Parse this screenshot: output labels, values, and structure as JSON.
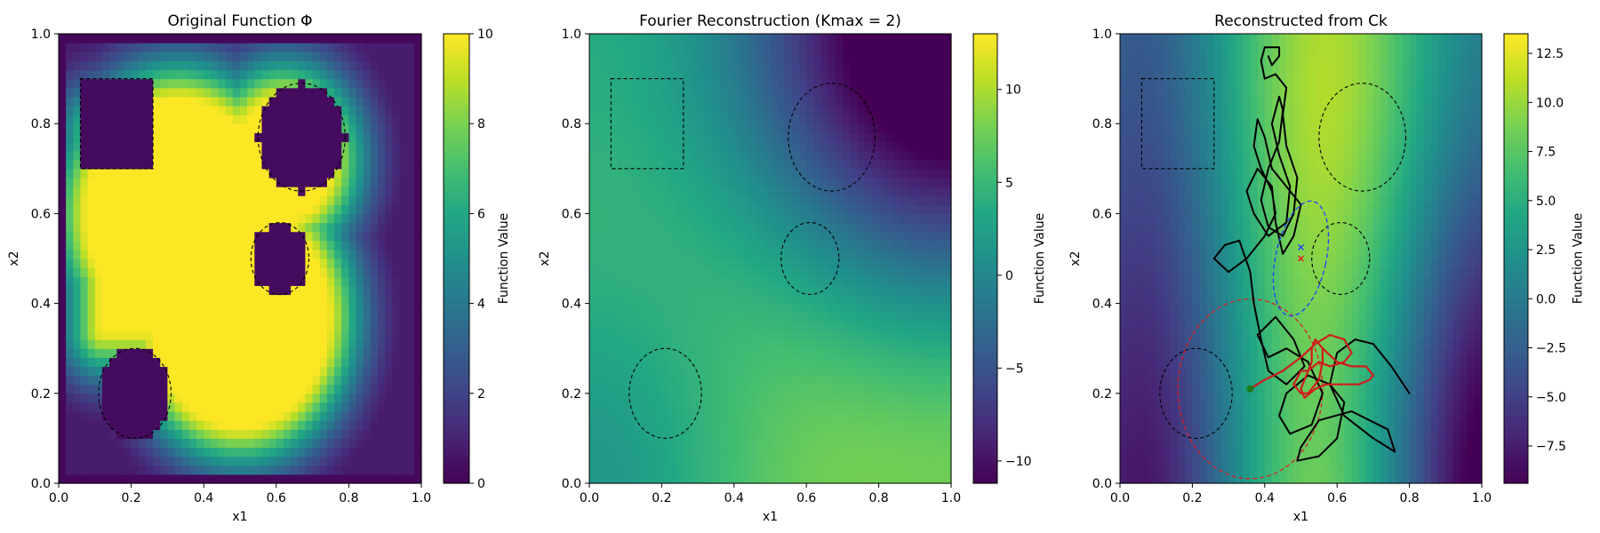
{
  "chart_data": [
    {
      "type": "heatmap",
      "title": "Original Function Φ",
      "xlabel": "x1",
      "ylabel": "x2",
      "xlim": [
        0,
        1
      ],
      "ylim": [
        0,
        1
      ],
      "xticks": [
        "0.0",
        "0.2",
        "0.4",
        "0.6",
        "0.8",
        "1.0"
      ],
      "yticks": [
        "0.0",
        "0.2",
        "0.4",
        "0.6",
        "0.8",
        "1.0"
      ],
      "colorbar": {
        "label": "Function Value",
        "range": [
          0,
          10
        ],
        "ticks": [
          "0",
          "2",
          "4",
          "6",
          "8",
          "10"
        ],
        "tick_values": [
          0,
          2,
          4,
          6,
          8,
          10
        ]
      },
      "colormap": "viridis",
      "high_region": {
        "value": 10,
        "circles": [
          {
            "cx": 0.33,
            "cy": 0.6,
            "r": 0.25
          },
          {
            "cx": 0.5,
            "cy": 0.37,
            "r": 0.24
          },
          {
            "cx": 0.62,
            "cy": 0.72,
            "r": 0.13
          }
        ],
        "rects": [
          [
            0.12,
            0.35,
            0.34,
            0.78
          ]
        ]
      },
      "obstacles": [
        {
          "shape": "rect",
          "x": [
            0.06,
            0.26
          ],
          "y": [
            0.7,
            0.9
          ]
        },
        {
          "shape": "ellipse",
          "center": [
            0.67,
            0.77
          ],
          "semi_axes": [
            0.12,
            0.12
          ]
        },
        {
          "shape": "ellipse",
          "center": [
            0.61,
            0.5
          ],
          "semi_axes": [
            0.08,
            0.08
          ]
        },
        {
          "shape": "ellipse",
          "center": [
            0.21,
            0.2
          ],
          "semi_axes": [
            0.1,
            0.1
          ]
        }
      ]
    },
    {
      "type": "heatmap",
      "title": "Fourier Reconstruction (Kmax = 2)",
      "xlabel": "x1",
      "ylabel": "x2",
      "xlim": [
        0,
        1
      ],
      "ylim": [
        0,
        1
      ],
      "xticks": [
        "0.0",
        "0.2",
        "0.4",
        "0.6",
        "0.8",
        "1.0"
      ],
      "yticks": [
        "0.0",
        "0.2",
        "0.4",
        "0.6",
        "0.8",
        "1.0"
      ],
      "colorbar": {
        "label": "Function Value",
        "range": [
          -11.2,
          13.0
        ],
        "ticks": [
          "10",
          "5",
          "0",
          "−5",
          "−10"
        ],
        "tick_values": [
          10,
          5,
          0,
          -5,
          -10
        ]
      },
      "colormap": "viridis",
      "obstacles": [
        {
          "shape": "rect",
          "x": [
            0.06,
            0.26
          ],
          "y": [
            0.7,
            0.9
          ]
        },
        {
          "shape": "ellipse",
          "center": [
            0.67,
            0.77
          ],
          "semi_axes": [
            0.12,
            0.12
          ]
        },
        {
          "shape": "ellipse",
          "center": [
            0.61,
            0.5
          ],
          "semi_axes": [
            0.08,
            0.08
          ]
        },
        {
          "shape": "ellipse",
          "center": [
            0.21,
            0.2
          ],
          "semi_axes": [
            0.1,
            0.1
          ]
        }
      ]
    },
    {
      "type": "heatmap",
      "title": "Reconstructed from Ck",
      "xlabel": "x1",
      "ylabel": "x2",
      "xlim": [
        0,
        1
      ],
      "ylim": [
        0,
        1
      ],
      "xticks": [
        "0.0",
        "0.2",
        "0.4",
        "0.6",
        "0.8",
        "1.0"
      ],
      "yticks": [
        "0.0",
        "0.2",
        "0.4",
        "0.6",
        "0.8",
        "1.0"
      ],
      "colorbar": {
        "label": "Function Value",
        "range": [
          -9.4,
          13.5
        ],
        "ticks": [
          "12.5",
          "10.0",
          "7.5",
          "5.0",
          "2.5",
          "0.0",
          "−2.5",
          "−5.0",
          "−7.5"
        ],
        "tick_values": [
          12.5,
          10.0,
          7.5,
          5.0,
          2.5,
          0.0,
          -2.5,
          -5.0,
          -7.5
        ]
      },
      "colormap": "viridis",
      "obstacles": [
        {
          "shape": "rect",
          "x": [
            0.06,
            0.26
          ],
          "y": [
            0.7,
            0.9
          ]
        },
        {
          "shape": "ellipse",
          "center": [
            0.67,
            0.77
          ],
          "semi_axes": [
            0.12,
            0.12
          ]
        },
        {
          "shape": "ellipse",
          "center": [
            0.61,
            0.5
          ],
          "semi_axes": [
            0.08,
            0.08
          ]
        },
        {
          "shape": "ellipse",
          "center": [
            0.21,
            0.2
          ],
          "semi_axes": [
            0.1,
            0.1
          ]
        }
      ],
      "trajectory_black": [
        [
          0.8,
          0.2
        ],
        [
          0.75,
          0.26
        ],
        [
          0.7,
          0.31
        ],
        [
          0.65,
          0.32
        ],
        [
          0.6,
          0.29
        ],
        [
          0.58,
          0.22
        ],
        [
          0.62,
          0.15
        ],
        [
          0.7,
          0.1
        ],
        [
          0.76,
          0.07
        ],
        [
          0.74,
          0.12
        ],
        [
          0.64,
          0.16
        ],
        [
          0.55,
          0.14
        ],
        [
          0.5,
          0.08
        ],
        [
          0.49,
          0.05
        ],
        [
          0.55,
          0.06
        ],
        [
          0.6,
          0.1
        ],
        [
          0.62,
          0.18
        ],
        [
          0.58,
          0.22
        ],
        [
          0.52,
          0.24
        ],
        [
          0.46,
          0.2
        ],
        [
          0.44,
          0.15
        ],
        [
          0.47,
          0.11
        ],
        [
          0.53,
          0.13
        ],
        [
          0.56,
          0.2
        ],
        [
          0.52,
          0.27
        ],
        [
          0.46,
          0.3
        ],
        [
          0.41,
          0.28
        ],
        [
          0.38,
          0.33
        ],
        [
          0.43,
          0.37
        ],
        [
          0.48,
          0.32
        ],
        [
          0.51,
          0.26
        ],
        [
          0.46,
          0.22
        ],
        [
          0.41,
          0.25
        ],
        [
          0.39,
          0.32
        ],
        [
          0.37,
          0.4
        ],
        [
          0.36,
          0.47
        ],
        [
          0.33,
          0.54
        ],
        [
          0.29,
          0.53
        ],
        [
          0.26,
          0.5
        ],
        [
          0.3,
          0.47
        ],
        [
          0.35,
          0.5
        ],
        [
          0.4,
          0.55
        ],
        [
          0.43,
          0.6
        ],
        [
          0.42,
          0.65
        ],
        [
          0.39,
          0.7
        ],
        [
          0.37,
          0.75
        ],
        [
          0.38,
          0.81
        ],
        [
          0.4,
          0.77
        ],
        [
          0.42,
          0.7
        ],
        [
          0.46,
          0.66
        ],
        [
          0.5,
          0.62
        ],
        [
          0.48,
          0.55
        ],
        [
          0.45,
          0.51
        ],
        [
          0.43,
          0.58
        ],
        [
          0.42,
          0.66
        ],
        [
          0.38,
          0.7
        ],
        [
          0.35,
          0.65
        ],
        [
          0.37,
          0.6
        ],
        [
          0.41,
          0.55
        ],
        [
          0.46,
          0.58
        ],
        [
          0.47,
          0.66
        ],
        [
          0.44,
          0.73
        ],
        [
          0.42,
          0.8
        ],
        [
          0.44,
          0.86
        ],
        [
          0.45,
          0.83
        ],
        [
          0.44,
          0.76
        ],
        [
          0.41,
          0.7
        ],
        [
          0.39,
          0.63
        ],
        [
          0.41,
          0.57
        ],
        [
          0.45,
          0.55
        ],
        [
          0.48,
          0.6
        ],
        [
          0.49,
          0.68
        ],
        [
          0.46,
          0.75
        ],
        [
          0.45,
          0.82
        ],
        [
          0.46,
          0.88
        ],
        [
          0.43,
          0.91
        ],
        [
          0.4,
          0.9
        ],
        [
          0.39,
          0.94
        ],
        [
          0.4,
          0.97
        ],
        [
          0.44,
          0.97
        ],
        [
          0.44,
          0.95
        ],
        [
          0.42,
          0.93
        ],
        [
          0.41,
          0.95
        ]
      ],
      "trajectory_red": [
        [
          0.36,
          0.21
        ],
        [
          0.4,
          0.23
        ],
        [
          0.45,
          0.25
        ],
        [
          0.5,
          0.28
        ],
        [
          0.54,
          0.31
        ],
        [
          0.58,
          0.33
        ],
        [
          0.62,
          0.32
        ],
        [
          0.64,
          0.29
        ],
        [
          0.62,
          0.27
        ],
        [
          0.58,
          0.26
        ],
        [
          0.55,
          0.27
        ],
        [
          0.52,
          0.25
        ],
        [
          0.5,
          0.21
        ],
        [
          0.51,
          0.19
        ],
        [
          0.54,
          0.21
        ],
        [
          0.57,
          0.22
        ],
        [
          0.62,
          0.22
        ],
        [
          0.66,
          0.22
        ],
        [
          0.69,
          0.23
        ],
        [
          0.7,
          0.24
        ],
        [
          0.68,
          0.26
        ],
        [
          0.64,
          0.26
        ],
        [
          0.6,
          0.27
        ],
        [
          0.56,
          0.3
        ],
        [
          0.54,
          0.32
        ],
        [
          0.53,
          0.3
        ],
        [
          0.53,
          0.27
        ],
        [
          0.52,
          0.25
        ],
        [
          0.5,
          0.25
        ],
        [
          0.48,
          0.22
        ],
        [
          0.5,
          0.2
        ],
        [
          0.52,
          0.2
        ],
        [
          0.55,
          0.23
        ],
        [
          0.56,
          0.27
        ],
        [
          0.56,
          0.3
        ]
      ],
      "start_point": [
        0.36,
        0.21
      ],
      "marker_blue": [
        0.5,
        0.525
      ],
      "marker_red": [
        0.5,
        0.5
      ],
      "ellipse_blue": {
        "center": [
          0.5,
          0.5
        ],
        "semi_axes": [
          0.07,
          0.13
        ],
        "angle": -12
      },
      "ellipse_red": {
        "center": [
          0.36,
          0.21
        ],
        "semi_axes": [
          0.2,
          0.2
        ]
      }
    }
  ]
}
